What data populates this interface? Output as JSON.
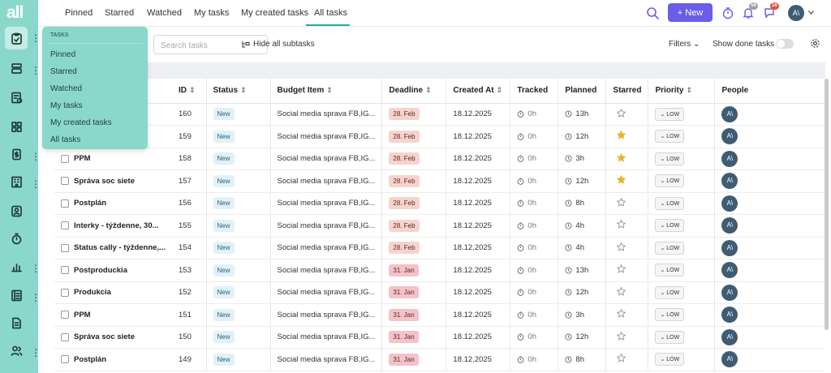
{
  "sidebar": {
    "logo": "all",
    "items": [
      "tasks-icon",
      "layers-icon",
      "invoice-icon",
      "apps-icon",
      "budget-icon",
      "building-icon",
      "contact-icon",
      "stopwatch-icon",
      "chart-icon",
      "ledger-icon",
      "document-icon",
      "people-icon"
    ]
  },
  "topbar": {
    "tabs": [
      "Pinned",
      "Starred",
      "Watched",
      "My tasks",
      "My created tasks",
      "All tasks"
    ],
    "active_tab": "All tasks",
    "new_label": "New",
    "notifications_count": "59",
    "messages_count": "16",
    "avatar": "A\\"
  },
  "toolbar": {
    "search_placeholder": "Search tasks",
    "hide_subtasks": "Hide all subtasks",
    "filters": "Filters",
    "show_done": "Show done tasks"
  },
  "dropdown": {
    "title": "TASKS",
    "items": [
      "Pinned",
      "Starred",
      "Watched",
      "My tasks",
      "My created tasks",
      "All tasks"
    ]
  },
  "table": {
    "columns": [
      "ID",
      "Status",
      "Budget Item",
      "Deadline",
      "Created At",
      "Tracked",
      "Planned",
      "Starred",
      "Priority",
      "People"
    ],
    "rows": [
      {
        "name": "",
        "id": "160",
        "status": "New",
        "budget": "Social media sprava FB,IG...",
        "deadline": "28. Feb",
        "created": "18.12.2025",
        "tracked": "0h",
        "planned": "13h",
        "starred": false,
        "priority": "LOW",
        "person": "A\\"
      },
      {
        "name": "",
        "id": "159",
        "status": "New",
        "budget": "Social media sprava FB,IG...",
        "deadline": "28. Feb",
        "created": "18.12.2025",
        "tracked": "0h",
        "planned": "12h",
        "starred": true,
        "priority": "LOW",
        "person": "A\\"
      },
      {
        "name": "PPM",
        "id": "158",
        "status": "New",
        "budget": "Social media sprava FB,IG...",
        "deadline": "28. Feb",
        "created": "18.12.2025",
        "tracked": "0h",
        "planned": "3h",
        "starred": true,
        "priority": "LOW",
        "person": "A\\"
      },
      {
        "name": "Správa soc siete",
        "id": "157",
        "status": "New",
        "budget": "Social media sprava FB,IG...",
        "deadline": "28. Feb",
        "created": "18.12.2025",
        "tracked": "0h",
        "planned": "12h",
        "starred": true,
        "priority": "LOW",
        "person": "A\\"
      },
      {
        "name": "Postplán",
        "id": "156",
        "status": "New",
        "budget": "Social media sprava FB,IG...",
        "deadline": "28. Feb",
        "created": "18.12.2025",
        "tracked": "0h",
        "planned": "8h",
        "starred": false,
        "priority": "LOW",
        "person": "A\\"
      },
      {
        "name": "Interky - týždenne, 30...",
        "id": "155",
        "status": "New",
        "budget": "Social media sprava FB,IG...",
        "deadline": "28. Feb",
        "created": "18.12.2025",
        "tracked": "0h",
        "planned": "4h",
        "starred": false,
        "priority": "LOW",
        "person": "A\\"
      },
      {
        "name": "Status cally - týždenne,...",
        "id": "154",
        "status": "New",
        "budget": "Social media sprava FB,IG...",
        "deadline": "28. Feb",
        "created": "18.12.2025",
        "tracked": "0h",
        "planned": "4h",
        "starred": false,
        "priority": "LOW",
        "person": "A\\"
      },
      {
        "name": "Postproduckia",
        "id": "153",
        "status": "New",
        "budget": "Social media sprava FB,IG...",
        "deadline": "31. Jan",
        "created": "18.12.2025",
        "tracked": "0h",
        "planned": "13h",
        "starred": false,
        "priority": "LOW",
        "person": "A\\"
      },
      {
        "name": "Produkcia",
        "id": "152",
        "status": "New",
        "budget": "Social media sprava FB,IG...",
        "deadline": "31. Jan",
        "created": "18.12.2025",
        "tracked": "0h",
        "planned": "12h",
        "starred": false,
        "priority": "LOW",
        "person": "A\\"
      },
      {
        "name": "PPM",
        "id": "151",
        "status": "New",
        "budget": "Social media sprava FB,IG...",
        "deadline": "31. Jan",
        "created": "18.12.2025",
        "tracked": "0h",
        "planned": "3h",
        "starred": false,
        "priority": "LOW",
        "person": "A\\"
      },
      {
        "name": "Správa soc siete",
        "id": "150",
        "status": "New",
        "budget": "Social media sprava FB,IG...",
        "deadline": "31. Jan",
        "created": "18.12.2025",
        "tracked": "0h",
        "planned": "12h",
        "starred": false,
        "priority": "LOW",
        "person": "A\\"
      },
      {
        "name": "Postplán",
        "id": "149",
        "status": "New",
        "budget": "Social media sprava FB,IG...",
        "deadline": "31. Jan",
        "created": "18.12.2025",
        "tracked": "0h",
        "planned": "8h",
        "starred": false,
        "priority": "LOW",
        "person": "A\\"
      }
    ]
  },
  "colors": {
    "accent": "#6a5de6",
    "sidebar": "#8ad8cb",
    "feb_deadline": "#f6d4cd",
    "jan_deadline": "#f4c2c9",
    "star": "#e9b426",
    "notif_badge": "#9aa0a6",
    "msg_badge": "#e0533b"
  }
}
